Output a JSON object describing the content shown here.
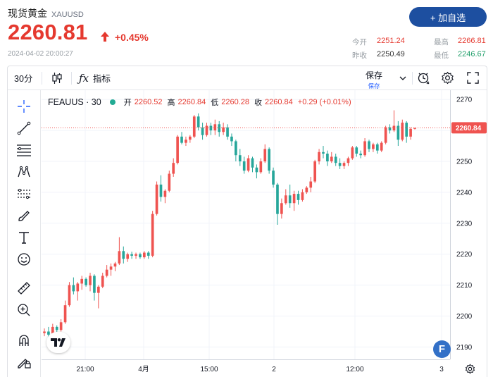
{
  "header": {
    "name": "现货黄金",
    "symbol": "XAUUSD",
    "price": "2260.81",
    "change": "+0.45%",
    "timestamp": "2024-04-02 20:00:27",
    "add_button": "+ 加自选",
    "stats": {
      "open_label": "今开",
      "open_value": "2251.24",
      "high_label": "最高",
      "high_value": "2266.81",
      "prev_label": "昨收",
      "prev_value": "2250.49",
      "low_label": "最低",
      "low_value": "2246.67"
    }
  },
  "toolbar": {
    "interval": "30分",
    "indicators_label": "指标",
    "save_label": "保存",
    "save_sublabel": "保存"
  },
  "legend": {
    "symbol": "FEAUUS · 30",
    "open_label": "开",
    "open_value": "2260.52",
    "high_label": "高",
    "high_value": "2260.84",
    "low_label": "低",
    "low_value": "2260.28",
    "close_label": "收",
    "close_value": "2260.84",
    "change_value": "+0.29 (+0.01%)"
  },
  "colors": {
    "up": "#ef5350",
    "down": "#26a69a",
    "accent": "#1d4fa0",
    "price_red": "#e5392f"
  },
  "chart_data": {
    "type": "candlestick",
    "y_ticks": [
      2270,
      2260,
      2250,
      2240,
      2230,
      2220,
      2210,
      2200,
      2190
    ],
    "ylim": [
      2186,
      2273
    ],
    "x_labels": [
      "21:00",
      "4月",
      "15:00",
      "2",
      "12:00",
      "3"
    ],
    "last_price": 2260.84,
    "candles": [
      [
        2194.5,
        2196,
        2193.5,
        2195.0
      ],
      [
        2195.0,
        2196.5,
        2193.0,
        2194.0
      ],
      [
        2194.0,
        2197.5,
        2193.8,
        2196.5
      ],
      [
        2196.5,
        2197.0,
        2194.5,
        2195.5
      ],
      [
        2195.5,
        2199.0,
        2195.0,
        2198.0
      ],
      [
        2198.0,
        2205.0,
        2197.5,
        2203.5
      ],
      [
        2203.5,
        2211.0,
        2203.0,
        2210.0
      ],
      [
        2210.0,
        2212.5,
        2207.0,
        2208.0
      ],
      [
        2208.0,
        2211.0,
        2205.0,
        2210.5
      ],
      [
        2210.5,
        2213.0,
        2208.5,
        2212.0
      ],
      [
        2212.0,
        2212.5,
        2209.5,
        2210.0
      ],
      [
        2210.0,
        2214.0,
        2208.0,
        2213.0
      ],
      [
        2213.0,
        2213.5,
        2205.0,
        2207.5
      ],
      [
        2207.5,
        2210.0,
        2202.5,
        2209.5
      ],
      [
        2209.5,
        2214.0,
        2209.0,
        2213.0
      ],
      [
        2213.0,
        2216.5,
        2212.5,
        2215.0
      ],
      [
        2215.0,
        2217.0,
        2213.0,
        2216.0
      ],
      [
        2216.0,
        2217.5,
        2214.5,
        2217.0
      ],
      [
        2217.0,
        2225.5,
        2216.5,
        2221.0
      ],
      [
        2221.0,
        2222.5,
        2217.0,
        2218.5
      ],
      [
        2218.5,
        2220.5,
        2217.5,
        2220.0
      ],
      [
        2220.0,
        2220.8,
        2218.5,
        2219.5
      ],
      [
        2219.5,
        2220.5,
        2218.5,
        2220.0
      ],
      [
        2220.0,
        2220.5,
        2218.5,
        2219.0
      ],
      [
        2219.0,
        2221.0,
        2218.5,
        2220.5
      ],
      [
        2220.5,
        2221.0,
        2218.5,
        2219.5
      ],
      [
        2219.5,
        2234.0,
        2219.0,
        2233.0
      ],
      [
        2233.0,
        2243.5,
        2232.5,
        2242.5
      ],
      [
        2242.5,
        2245.5,
        2237.0,
        2238.5
      ],
      [
        2238.5,
        2241.0,
        2236.5,
        2240.5
      ],
      [
        2240.5,
        2247.0,
        2240.0,
        2246.0
      ],
      [
        2246.0,
        2251.0,
        2245.0,
        2249.5
      ],
      [
        2249.5,
        2258.5,
        2249.0,
        2258.0
      ],
      [
        2258.0,
        2259.5,
        2255.5,
        2256.0
      ],
      [
        2256.0,
        2258.0,
        2255.0,
        2257.0
      ],
      [
        2257.0,
        2258.5,
        2256.0,
        2258.0
      ],
      [
        2258.0,
        2265.0,
        2257.5,
        2264.5
      ],
      [
        2264.5,
        2265.5,
        2260.0,
        2261.0
      ],
      [
        2261.0,
        2262.5,
        2257.0,
        2258.5
      ],
      [
        2258.5,
        2262.5,
        2258.0,
        2261.5
      ],
      [
        2261.5,
        2262.5,
        2258.5,
        2260.0
      ],
      [
        2260.0,
        2263.5,
        2258.5,
        2262.0
      ],
      [
        2262.0,
        2263.0,
        2258.0,
        2259.5
      ],
      [
        2259.5,
        2262.5,
        2258.5,
        2261.0
      ],
      [
        2261.0,
        2262.0,
        2257.0,
        2258.0
      ],
      [
        2258.0,
        2259.0,
        2255.0,
        2256.5
      ],
      [
        2256.5,
        2257.0,
        2250.0,
        2252.0
      ],
      [
        2252.0,
        2254.0,
        2248.5,
        2250.0
      ],
      [
        2250.0,
        2251.5,
        2246.0,
        2247.0
      ],
      [
        2247.0,
        2252.0,
        2246.5,
        2251.0
      ],
      [
        2251.0,
        2251.5,
        2246.5,
        2248.0
      ],
      [
        2248.0,
        2249.0,
        2244.5,
        2246.5
      ],
      [
        2246.5,
        2251.0,
        2246.0,
        2250.0
      ],
      [
        2250.0,
        2255.5,
        2249.5,
        2254.0
      ],
      [
        2254.0,
        2254.5,
        2246.0,
        2247.0
      ],
      [
        2247.0,
        2248.0,
        2241.5,
        2242.5
      ],
      [
        2242.5,
        2243.0,
        2229.5,
        2233.0
      ],
      [
        2233.0,
        2238.0,
        2231.5,
        2236.5
      ],
      [
        2236.5,
        2241.0,
        2236.0,
        2239.0
      ],
      [
        2239.0,
        2242.5,
        2235.0,
        2236.5
      ],
      [
        2236.5,
        2240.5,
        2234.0,
        2239.5
      ],
      [
        2239.5,
        2240.5,
        2236.0,
        2237.5
      ],
      [
        2237.5,
        2241.0,
        2237.0,
        2240.0
      ],
      [
        2240.0,
        2242.0,
        2239.5,
        2241.5
      ],
      [
        2241.5,
        2245.0,
        2240.0,
        2243.5
      ],
      [
        2243.5,
        2250.5,
        2243.0,
        2250.0
      ],
      [
        2250.0,
        2254.0,
        2249.0,
        2253.0
      ],
      [
        2253.0,
        2255.0,
        2251.0,
        2252.5
      ],
      [
        2252.5,
        2253.5,
        2248.5,
        2250.0
      ],
      [
        2250.0,
        2253.0,
        2249.5,
        2251.5
      ],
      [
        2251.5,
        2252.5,
        2248.5,
        2249.5
      ],
      [
        2249.5,
        2251.0,
        2247.5,
        2248.5
      ],
      [
        2248.5,
        2250.0,
        2247.5,
        2249.5
      ],
      [
        2249.5,
        2251.5,
        2248.5,
        2251.0
      ],
      [
        2251.0,
        2255.0,
        2250.5,
        2254.5
      ],
      [
        2254.5,
        2255.0,
        2251.5,
        2252.5
      ],
      [
        2252.5,
        2253.5,
        2251.0,
        2252.0
      ],
      [
        2252.0,
        2257.5,
        2251.5,
        2256.5
      ],
      [
        2256.5,
        2257.0,
        2253.0,
        2254.0
      ],
      [
        2254.0,
        2256.0,
        2253.0,
        2255.5
      ],
      [
        2255.5,
        2256.0,
        2252.5,
        2253.5
      ],
      [
        2253.5,
        2256.5,
        2253.0,
        2256.0
      ],
      [
        2256.0,
        2261.5,
        2255.5,
        2261.0
      ],
      [
        2261.0,
        2262.0,
        2259.0,
        2260.0
      ],
      [
        2260.0,
        2266.5,
        2259.5,
        2261.5
      ],
      [
        2261.5,
        2263.0,
        2255.0,
        2257.0
      ],
      [
        2257.0,
        2263.5,
        2256.5,
        2262.5
      ],
      [
        2262.5,
        2263.0,
        2256.0,
        2258.0
      ],
      [
        2258.0,
        2261.0,
        2257.0,
        2260.5
      ],
      [
        2260.5,
        2260.8,
        2260.3,
        2260.84
      ]
    ]
  }
}
